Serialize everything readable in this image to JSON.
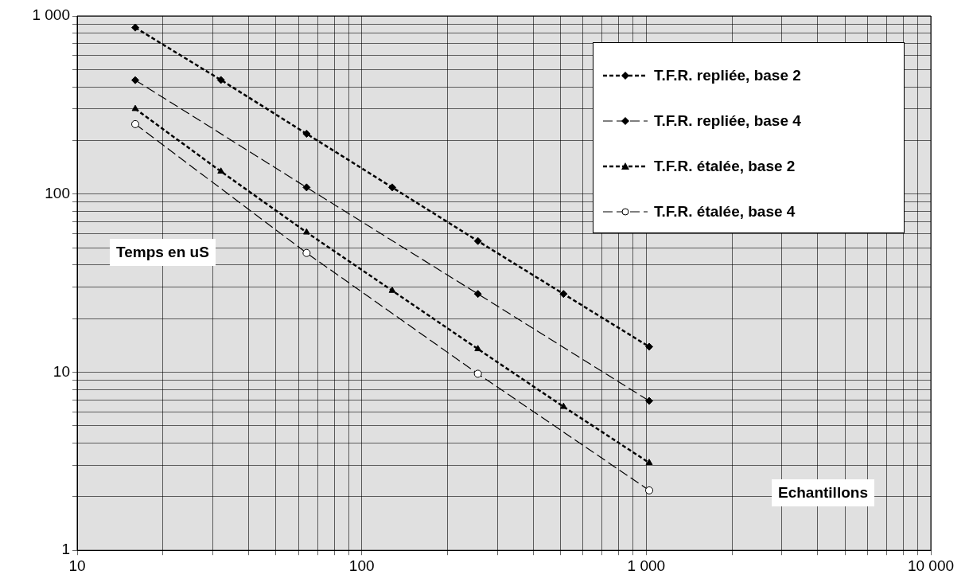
{
  "chart_data": {
    "type": "line",
    "xlabel": "Echantillons",
    "ylabel": "Temps en uS",
    "log": "xy",
    "grid": true,
    "legend": "top right",
    "xlim": [
      10,
      10000
    ],
    "ylim": [
      1,
      1000
    ],
    "xticks": [
      10,
      {
        "value": 20,
        "label": null
      },
      {
        "value": 30,
        "label": null
      },
      {
        "value": 40,
        "label": null
      },
      {
        "value": 50,
        "label": null
      },
      {
        "value": 60,
        "label": null
      },
      {
        "value": 70,
        "label": null
      },
      {
        "value": 80,
        "label": null
      },
      {
        "value": 90,
        "label": null
      },
      100,
      {
        "value": 200,
        "label": null
      },
      {
        "value": 300,
        "label": null
      },
      {
        "value": 400,
        "label": null
      },
      {
        "value": 500,
        "label": null
      },
      {
        "value": 600,
        "label": null
      },
      {
        "value": 700,
        "label": null
      },
      {
        "value": 800,
        "label": null
      },
      {
        "value": 900,
        "label": null
      },
      {
        "value": 1000,
        "label": "1 000"
      },
      {
        "value": 2000,
        "label": null
      },
      {
        "value": 3000,
        "label": null
      },
      {
        "value": 4000,
        "label": null
      },
      {
        "value": 5000,
        "label": null
      },
      {
        "value": 6000,
        "label": null
      },
      {
        "value": 7000,
        "label": null
      },
      {
        "value": 8000,
        "label": null
      },
      {
        "value": 9000,
        "label": null
      },
      {
        "value": 10000,
        "label": "10 000"
      }
    ],
    "yticks": [
      1,
      {
        "value": 2,
        "label": null
      },
      {
        "value": 3,
        "label": null
      },
      {
        "value": 4,
        "label": null
      },
      {
        "value": 5,
        "label": null
      },
      {
        "value": 6,
        "label": null
      },
      {
        "value": 7,
        "label": null
      },
      {
        "value": 8,
        "label": null
      },
      {
        "value": 9,
        "label": null
      },
      10,
      {
        "value": 20,
        "label": null
      },
      {
        "value": 30,
        "label": null
      },
      {
        "value": 40,
        "label": null
      },
      {
        "value": 50,
        "label": null
      },
      {
        "value": 60,
        "label": null
      },
      {
        "value": 70,
        "label": null
      },
      {
        "value": 80,
        "label": null
      },
      {
        "value": 90,
        "label": null
      },
      100,
      {
        "value": 200,
        "label": null
      },
      {
        "value": 300,
        "label": null
      },
      {
        "value": 400,
        "label": null
      },
      {
        "value": 500,
        "label": null
      },
      {
        "value": 600,
        "label": null
      },
      {
        "value": 700,
        "label": null
      },
      {
        "value": 800,
        "label": null
      },
      {
        "value": 900,
        "label": null
      },
      {
        "value": 1000,
        "label": "1 000"
      }
    ],
    "series": [
      {
        "name": "T.F.R. repliée, base 2",
        "color": "#000000",
        "marker": "diamond",
        "line_style": "dotted",
        "x": [
          16,
          32,
          64,
          128,
          256,
          512,
          1024
        ],
        "values": [
          860,
          437,
          218,
          109,
          54.5,
          27.5,
          13.9
        ]
      },
      {
        "name": "T.F.R. repliée, base 4",
        "color": "#000000",
        "marker": "diamond",
        "line_style": "dashed",
        "x": [
          16,
          64,
          256,
          1024
        ],
        "values": [
          436,
          109,
          27.5,
          6.9
        ]
      },
      {
        "name": "T.F.R. étalée, base 2",
        "color": "#000000",
        "marker": "triangle",
        "line_style": "dotted",
        "x": [
          16,
          32,
          64,
          128,
          256,
          512,
          1024
        ],
        "values": [
          301,
          134,
          61,
          28.7,
          13.5,
          6.4,
          3.1
        ]
      },
      {
        "name": "T.F.R. étalée, base 4",
        "color": "#000000",
        "marker": "circle",
        "line_style": "dashed",
        "x": [
          16,
          64,
          256,
          1024
        ],
        "values": [
          247,
          46.7,
          9.8,
          2.17
        ]
      }
    ]
  }
}
